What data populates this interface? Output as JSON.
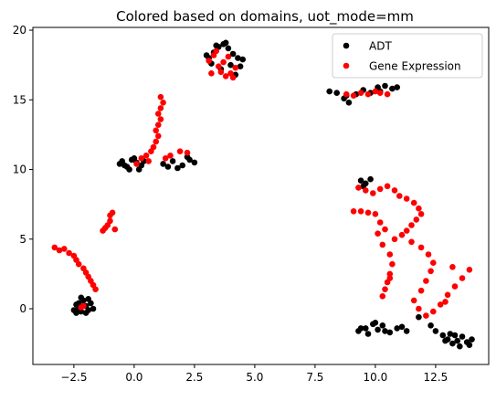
{
  "chart_data": {
    "type": "scatter",
    "title": "Colored based on domains, uot_mode=mm",
    "xlabel": "",
    "ylabel": "",
    "xlim": [
      -4.2,
      14.7
    ],
    "ylim": [
      -4.0,
      20.2
    ],
    "xticks": [
      -2.5,
      0.0,
      2.5,
      5.0,
      7.5,
      10.0,
      12.5
    ],
    "xtick_labels": [
      "−2.5",
      "0.0",
      "2.5",
      "5.0",
      "7.5",
      "10.0",
      "12.5"
    ],
    "yticks": [
      0,
      5,
      10,
      15,
      20
    ],
    "ytick_labels": [
      "0",
      "5",
      "10",
      "15",
      "20"
    ],
    "grid": false,
    "legend_position": "top-right",
    "series": [
      {
        "name": "ADT",
        "color": "#000000",
        "points": [
          [
            -2.4,
            0.3
          ],
          [
            -2.3,
            0.0
          ],
          [
            -2.2,
            -0.2
          ],
          [
            -2.1,
            0.6
          ],
          [
            -2.0,
            0.2
          ],
          [
            -1.9,
            -0.1
          ],
          [
            -1.8,
            0.4
          ],
          [
            -2.5,
            -0.1
          ],
          [
            -2.2,
            0.8
          ],
          [
            -1.9,
            0.7
          ],
          [
            -2.3,
            0.4
          ],
          [
            -2.0,
            -0.3
          ],
          [
            -1.7,
            0.0
          ],
          [
            -2.4,
            -0.3
          ],
          [
            -0.5,
            10.6
          ],
          [
            -0.3,
            10.2
          ],
          [
            -0.1,
            10.7
          ],
          [
            0.1,
            10.5
          ],
          [
            0.3,
            10.3
          ],
          [
            -0.4,
            10.3
          ],
          [
            0.0,
            10.8
          ],
          [
            0.2,
            10.0
          ],
          [
            -0.6,
            10.4
          ],
          [
            0.4,
            10.6
          ],
          [
            -0.2,
            10.0
          ],
          [
            1.2,
            10.4
          ],
          [
            1.6,
            10.6
          ],
          [
            2.0,
            10.3
          ],
          [
            2.3,
            10.7
          ],
          [
            2.5,
            10.5
          ],
          [
            1.8,
            10.1
          ],
          [
            2.2,
            10.9
          ],
          [
            1.4,
            10.2
          ],
          [
            3.1,
            18.0
          ],
          [
            3.3,
            18.4
          ],
          [
            3.5,
            18.8
          ],
          [
            3.7,
            19.0
          ],
          [
            3.9,
            18.7
          ],
          [
            4.1,
            18.3
          ],
          [
            4.3,
            18.0
          ],
          [
            3.2,
            17.6
          ],
          [
            3.6,
            17.2
          ],
          [
            4.0,
            17.5
          ],
          [
            4.4,
            17.4
          ],
          [
            4.2,
            16.8
          ],
          [
            3.8,
            19.1
          ],
          [
            3.4,
            18.9
          ],
          [
            3.0,
            18.2
          ],
          [
            4.5,
            17.9
          ],
          [
            8.1,
            15.6
          ],
          [
            8.4,
            15.5
          ],
          [
            8.7,
            15.1
          ],
          [
            8.9,
            14.8
          ],
          [
            9.2,
            15.4
          ],
          [
            9.5,
            15.7
          ],
          [
            9.8,
            15.5
          ],
          [
            10.1,
            15.9
          ],
          [
            10.4,
            16.0
          ],
          [
            10.7,
            15.8
          ],
          [
            10.9,
            15.9
          ],
          [
            8.8,
            15.3
          ],
          [
            10.2,
            15.6
          ],
          [
            9.4,
            9.2
          ],
          [
            9.6,
            9.0
          ],
          [
            9.8,
            9.3
          ],
          [
            9.5,
            8.8
          ],
          [
            9.3,
            -1.6
          ],
          [
            9.6,
            -1.4
          ],
          [
            9.9,
            -1.1
          ],
          [
            10.1,
            -1.5
          ],
          [
            10.3,
            -1.2
          ],
          [
            10.6,
            -1.7
          ],
          [
            10.9,
            -1.4
          ],
          [
            9.7,
            -1.8
          ],
          [
            10.4,
            -1.6
          ],
          [
            11.1,
            -1.3
          ],
          [
            10.0,
            -1.0
          ],
          [
            11.3,
            -1.6
          ],
          [
            9.4,
            -1.4
          ],
          [
            12.5,
            -1.6
          ],
          [
            12.8,
            -1.9
          ],
          [
            13.0,
            -2.2
          ],
          [
            13.2,
            -2.5
          ],
          [
            13.4,
            -2.3
          ],
          [
            13.6,
            -2.0
          ],
          [
            13.8,
            -2.4
          ],
          [
            14.0,
            -2.2
          ],
          [
            13.1,
            -1.8
          ],
          [
            13.5,
            -2.7
          ],
          [
            12.9,
            -2.3
          ],
          [
            13.3,
            -1.9
          ],
          [
            13.9,
            -2.6
          ],
          [
            12.3,
            -1.2
          ],
          [
            11.8,
            -0.6
          ]
        ]
      },
      {
        "name": "Gene Expression",
        "color": "#ff0000",
        "points": [
          [
            -3.3,
            4.4
          ],
          [
            -3.1,
            4.2
          ],
          [
            -2.9,
            4.3
          ],
          [
            -2.7,
            4.0
          ],
          [
            -2.5,
            3.8
          ],
          [
            -2.4,
            3.5
          ],
          [
            -2.3,
            3.2
          ],
          [
            -2.1,
            2.9
          ],
          [
            -2.0,
            2.6
          ],
          [
            -1.9,
            2.3
          ],
          [
            -1.8,
            2.0
          ],
          [
            -1.7,
            1.7
          ],
          [
            -1.6,
            1.4
          ],
          [
            -2.2,
            0.1
          ],
          [
            -2.1,
            0.2
          ],
          [
            -1.3,
            5.6
          ],
          [
            -1.2,
            5.8
          ],
          [
            -1.1,
            6.0
          ],
          [
            -1.0,
            6.3
          ],
          [
            -1.0,
            6.7
          ],
          [
            -0.9,
            6.9
          ],
          [
            -0.8,
            5.7
          ],
          [
            0.1,
            10.4
          ],
          [
            0.3,
            10.8
          ],
          [
            0.5,
            11.0
          ],
          [
            0.7,
            11.3
          ],
          [
            0.8,
            11.6
          ],
          [
            0.9,
            12.0
          ],
          [
            1.0,
            12.4
          ],
          [
            0.9,
            12.8
          ],
          [
            1.0,
            13.2
          ],
          [
            1.1,
            13.6
          ],
          [
            1.0,
            14.0
          ],
          [
            1.1,
            14.4
          ],
          [
            1.2,
            14.8
          ],
          [
            1.1,
            15.2
          ],
          [
            1.5,
            11.0
          ],
          [
            1.9,
            11.3
          ],
          [
            2.2,
            11.2
          ],
          [
            1.3,
            10.8
          ],
          [
            0.6,
            10.6
          ],
          [
            3.1,
            17.8
          ],
          [
            3.3,
            18.2
          ],
          [
            3.5,
            17.4
          ],
          [
            3.6,
            17.0
          ],
          [
            3.8,
            16.7
          ],
          [
            4.0,
            16.9
          ],
          [
            4.2,
            17.3
          ],
          [
            3.9,
            18.1
          ],
          [
            3.4,
            18.5
          ],
          [
            3.7,
            17.7
          ],
          [
            4.1,
            16.6
          ],
          [
            3.2,
            16.9
          ],
          [
            8.8,
            15.4
          ],
          [
            9.1,
            15.3
          ],
          [
            9.4,
            15.5
          ],
          [
            9.7,
            15.4
          ],
          [
            10.0,
            15.6
          ],
          [
            10.2,
            15.5
          ],
          [
            10.5,
            15.4
          ],
          [
            9.3,
            8.7
          ],
          [
            9.6,
            8.5
          ],
          [
            9.9,
            8.3
          ],
          [
            10.2,
            8.6
          ],
          [
            10.5,
            8.8
          ],
          [
            10.8,
            8.5
          ],
          [
            11.0,
            8.1
          ],
          [
            11.3,
            7.9
          ],
          [
            11.6,
            7.6
          ],
          [
            11.8,
            7.2
          ],
          [
            11.9,
            6.8
          ],
          [
            11.7,
            6.4
          ],
          [
            11.5,
            6.0
          ],
          [
            11.3,
            5.6
          ],
          [
            11.1,
            5.3
          ],
          [
            10.8,
            5.0
          ],
          [
            9.1,
            7.0
          ],
          [
            9.4,
            7.0
          ],
          [
            9.7,
            6.9
          ],
          [
            10.0,
            6.8
          ],
          [
            10.2,
            6.2
          ],
          [
            10.4,
            5.7
          ],
          [
            10.1,
            5.4
          ],
          [
            10.3,
            4.6
          ],
          [
            10.6,
            3.9
          ],
          [
            10.7,
            3.2
          ],
          [
            10.6,
            2.5
          ],
          [
            10.5,
            1.9
          ],
          [
            10.4,
            1.4
          ],
          [
            10.3,
            0.9
          ],
          [
            10.6,
            2.2
          ],
          [
            11.5,
            4.8
          ],
          [
            11.9,
            4.4
          ],
          [
            12.2,
            3.9
          ],
          [
            12.4,
            3.3
          ],
          [
            12.3,
            2.7
          ],
          [
            12.1,
            2.0
          ],
          [
            11.9,
            1.3
          ],
          [
            11.6,
            0.6
          ],
          [
            11.8,
            0.0
          ],
          [
            12.1,
            -0.5
          ],
          [
            12.4,
            -0.2
          ],
          [
            12.7,
            0.3
          ],
          [
            13.0,
            1.0
          ],
          [
            13.3,
            1.6
          ],
          [
            13.6,
            2.2
          ],
          [
            13.9,
            2.8
          ],
          [
            13.2,
            3.0
          ],
          [
            12.9,
            0.5
          ]
        ]
      }
    ]
  }
}
